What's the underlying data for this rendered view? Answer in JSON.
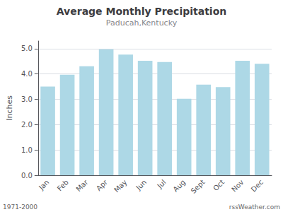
{
  "chart_data": {
    "type": "bar",
    "title": "Average Monthly Precipitation",
    "subtitle": "Paducah,Kentucky",
    "ylabel": "Inches",
    "categories": [
      "Jan",
      "Feb",
      "Mar",
      "Apr",
      "May",
      "Jun",
      "Jul",
      "Aug",
      "Sept",
      "Oct",
      "Nov",
      "Dec"
    ],
    "values": [
      3.5,
      3.97,
      4.3,
      4.97,
      4.76,
      4.52,
      4.47,
      3.02,
      3.58,
      3.48,
      4.52,
      4.4
    ],
    "color": "#add8e6",
    "ylim": [
      0.0,
      5.3
    ],
    "yticks": [
      {
        "value": 0.0,
        "label": "0.0"
      },
      {
        "value": 1.0,
        "label": "1.0"
      },
      {
        "value": 2.0,
        "label": "2.0"
      },
      {
        "value": 3.0,
        "label": "3.0"
      },
      {
        "value": 4.0,
        "label": "4.0"
      },
      {
        "value": 5.0,
        "label": "5.0"
      }
    ],
    "grid": true,
    "annotations": [
      "1971-2000",
      "rssWeather.com"
    ]
  }
}
